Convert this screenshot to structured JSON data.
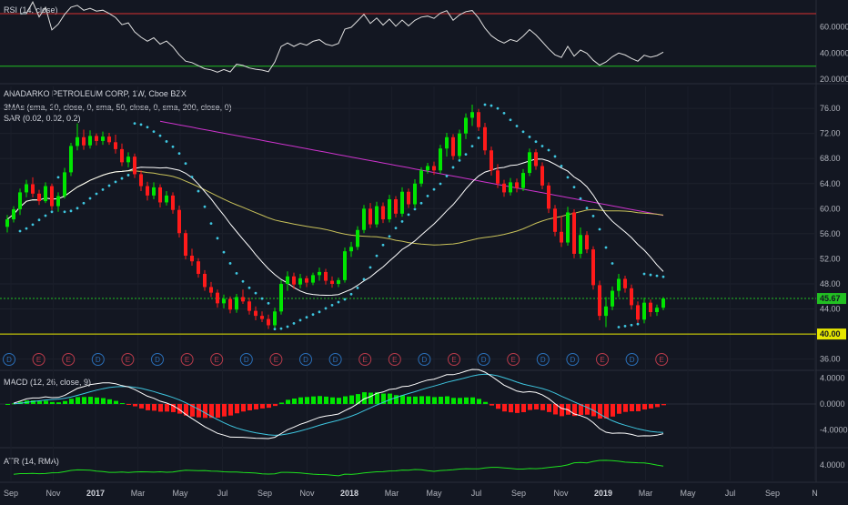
{
  "chart_data": {
    "type": "candlestick",
    "symbol": "ANADARKO PETROLEUM CORP, 1W, Cboe BZX",
    "indicators": {
      "rsi_label": "RSI (14, close)",
      "ma_label": "3MAs (sma, 20, close, 0, sma, 50, close, 0, sma, 200, close, 0)",
      "sar_label": "SAR (0.02, 0.02, 0.2)",
      "macd_label": "MACD (12, 26, close, 9)",
      "atr_label": "ATR (14, RMA)"
    },
    "price_axis": {
      "range": [
        34.5,
        79.5
      ],
      "ticks": [
        "76.00",
        "72.00",
        "68.00",
        "64.00",
        "60.00",
        "56.00",
        "52.00",
        "48.00",
        "44.00",
        "40.00",
        "36.00"
      ]
    },
    "rsi_axis": {
      "range": [
        18,
        79
      ],
      "ticks": [
        "60.0000",
        "40.0000",
        "20.0000"
      ],
      "levels": [
        70,
        30
      ]
    },
    "macd_axis": {
      "range": [
        -6.5,
        4.8
      ],
      "ticks": [
        "4.0000",
        "0.0000",
        "-4.0000"
      ]
    },
    "atr_axis": {
      "range": [
        2,
        6
      ],
      "ticks": [
        "4.0000"
      ]
    },
    "last_price": {
      "value": 45.67,
      "label": "45.67"
    },
    "support_line": {
      "value": 40.0,
      "label": "40.00"
    },
    "x_axis": {
      "labels": [
        {
          "text": "Sep",
          "bold": false
        },
        {
          "text": "Nov",
          "bold": false
        },
        {
          "text": "2017",
          "bold": true
        },
        {
          "text": "Mar",
          "bold": false
        },
        {
          "text": "May",
          "bold": false
        },
        {
          "text": "Jul",
          "bold": false
        },
        {
          "text": "Sep",
          "bold": false
        },
        {
          "text": "Nov",
          "bold": false
        },
        {
          "text": "2018",
          "bold": true
        },
        {
          "text": "Mar",
          "bold": false
        },
        {
          "text": "May",
          "bold": false
        },
        {
          "text": "Jul",
          "bold": false
        },
        {
          "text": "Sep",
          "bold": false
        },
        {
          "text": "Nov",
          "bold": false
        },
        {
          "text": "2019",
          "bold": true
        },
        {
          "text": "Mar",
          "bold": false
        },
        {
          "text": "May",
          "bold": false
        },
        {
          "text": "Jul",
          "bold": false
        },
        {
          "text": "Sep",
          "bold": false
        },
        {
          "text": "N",
          "bold": false
        }
      ]
    },
    "events": [
      "D",
      "E",
      "E",
      "D",
      "E",
      "D",
      "E",
      "E",
      "D",
      "E",
      "D",
      "D",
      "E",
      "E",
      "D",
      "E",
      "D",
      "E",
      "D",
      "D",
      "E",
      "D",
      "E"
    ],
    "colors": {
      "background": "#131722",
      "up": "#00e600",
      "down": "#ff1a1a",
      "ma20": "#ffffff",
      "ma50": "#c9c25a",
      "ma200": "#cc33cc",
      "sar": "#3ec6e0",
      "rsi": "#e0e0e0",
      "rsi_upper": "#d83030",
      "rsi_lower": "#22c022",
      "macd": "#ffffff",
      "signal": "#3ec6e0",
      "atr": "#1ee01e",
      "last_price_line": "#22c022",
      "support": "#e6e600",
      "event_dividend": "#2a6fb8",
      "event_earnings": "#b83a4a"
    },
    "candles": [
      {
        "o": 57.1,
        "h": 59.0,
        "l": 56.2,
        "c": 58.3
      },
      {
        "o": 58.3,
        "h": 60.4,
        "l": 57.8,
        "c": 59.9
      },
      {
        "o": 59.9,
        "h": 63.2,
        "l": 59.0,
        "c": 62.6
      },
      {
        "o": 62.6,
        "h": 64.6,
        "l": 61.8,
        "c": 63.9
      },
      {
        "o": 63.9,
        "h": 65.0,
        "l": 61.8,
        "c": 62.4
      },
      {
        "o": 62.4,
        "h": 63.0,
        "l": 60.6,
        "c": 61.2
      },
      {
        "o": 61.2,
        "h": 64.2,
        "l": 60.9,
        "c": 63.6
      },
      {
        "o": 63.6,
        "h": 64.0,
        "l": 59.8,
        "c": 60.4
      },
      {
        "o": 60.4,
        "h": 62.6,
        "l": 59.5,
        "c": 62.0
      },
      {
        "o": 62.0,
        "h": 66.5,
        "l": 61.6,
        "c": 65.8
      },
      {
        "o": 65.8,
        "h": 70.5,
        "l": 65.2,
        "c": 70.0
      },
      {
        "o": 70.0,
        "h": 73.6,
        "l": 69.3,
        "c": 71.4
      },
      {
        "o": 71.4,
        "h": 72.6,
        "l": 69.4,
        "c": 70.1
      },
      {
        "o": 70.1,
        "h": 72.5,
        "l": 69.6,
        "c": 71.6
      },
      {
        "o": 71.6,
        "h": 72.0,
        "l": 70.1,
        "c": 70.8
      },
      {
        "o": 70.8,
        "h": 72.3,
        "l": 70.2,
        "c": 71.5
      },
      {
        "o": 71.5,
        "h": 72.1,
        "l": 70.2,
        "c": 70.6
      },
      {
        "o": 70.6,
        "h": 71.8,
        "l": 68.8,
        "c": 69.5
      },
      {
        "o": 69.5,
        "h": 70.4,
        "l": 66.8,
        "c": 67.4
      },
      {
        "o": 67.4,
        "h": 69.0,
        "l": 66.6,
        "c": 68.3
      },
      {
        "o": 68.3,
        "h": 68.8,
        "l": 64.9,
        "c": 65.5
      },
      {
        "o": 65.5,
        "h": 66.1,
        "l": 62.8,
        "c": 63.6
      },
      {
        "o": 63.6,
        "h": 64.3,
        "l": 61.3,
        "c": 62.1
      },
      {
        "o": 62.1,
        "h": 64.2,
        "l": 61.5,
        "c": 63.4
      },
      {
        "o": 63.4,
        "h": 63.9,
        "l": 60.2,
        "c": 61.0
      },
      {
        "o": 61.0,
        "h": 62.8,
        "l": 60.5,
        "c": 62.1
      },
      {
        "o": 62.1,
        "h": 62.6,
        "l": 59.2,
        "c": 59.8
      },
      {
        "o": 59.8,
        "h": 60.5,
        "l": 55.4,
        "c": 56.1
      },
      {
        "o": 56.1,
        "h": 56.6,
        "l": 51.9,
        "c": 52.5
      },
      {
        "o": 52.5,
        "h": 53.6,
        "l": 50.9,
        "c": 51.6
      },
      {
        "o": 51.6,
        "h": 52.1,
        "l": 49.0,
        "c": 49.6
      },
      {
        "o": 49.6,
        "h": 50.2,
        "l": 46.9,
        "c": 47.5
      },
      {
        "o": 47.5,
        "h": 48.3,
        "l": 45.9,
        "c": 46.6
      },
      {
        "o": 46.6,
        "h": 47.1,
        "l": 44.2,
        "c": 44.9
      },
      {
        "o": 44.9,
        "h": 46.3,
        "l": 44.1,
        "c": 45.6
      },
      {
        "o": 45.6,
        "h": 46.0,
        "l": 43.3,
        "c": 43.9
      },
      {
        "o": 43.9,
        "h": 46.4,
        "l": 43.4,
        "c": 45.9
      },
      {
        "o": 45.9,
        "h": 47.1,
        "l": 44.8,
        "c": 45.2
      },
      {
        "o": 45.2,
        "h": 45.8,
        "l": 43.1,
        "c": 43.7
      },
      {
        "o": 43.7,
        "h": 44.4,
        "l": 42.2,
        "c": 42.9
      },
      {
        "o": 42.9,
        "h": 43.6,
        "l": 41.9,
        "c": 42.4
      },
      {
        "o": 42.4,
        "h": 43.1,
        "l": 40.8,
        "c": 41.4
      },
      {
        "o": 41.4,
        "h": 44.2,
        "l": 40.9,
        "c": 43.6
      },
      {
        "o": 43.6,
        "h": 48.6,
        "l": 43.1,
        "c": 48.0
      },
      {
        "o": 48.0,
        "h": 50.0,
        "l": 46.9,
        "c": 49.2
      },
      {
        "o": 49.2,
        "h": 49.8,
        "l": 47.2,
        "c": 47.9
      },
      {
        "o": 47.9,
        "h": 49.6,
        "l": 47.3,
        "c": 48.9
      },
      {
        "o": 48.9,
        "h": 49.3,
        "l": 47.5,
        "c": 48.2
      },
      {
        "o": 48.2,
        "h": 49.8,
        "l": 47.8,
        "c": 49.4
      },
      {
        "o": 49.4,
        "h": 50.6,
        "l": 48.5,
        "c": 49.9
      },
      {
        "o": 49.9,
        "h": 50.4,
        "l": 47.9,
        "c": 48.5
      },
      {
        "o": 48.5,
        "h": 49.2,
        "l": 47.4,
        "c": 48.0
      },
      {
        "o": 48.0,
        "h": 49.0,
        "l": 47.5,
        "c": 48.6
      },
      {
        "o": 48.6,
        "h": 53.8,
        "l": 48.2,
        "c": 53.2
      },
      {
        "o": 53.2,
        "h": 54.7,
        "l": 52.3,
        "c": 53.9
      },
      {
        "o": 53.9,
        "h": 57.2,
        "l": 53.4,
        "c": 56.6
      },
      {
        "o": 56.6,
        "h": 60.6,
        "l": 56.1,
        "c": 60.0
      },
      {
        "o": 60.0,
        "h": 60.9,
        "l": 56.9,
        "c": 57.5
      },
      {
        "o": 57.5,
        "h": 61.1,
        "l": 57.0,
        "c": 60.4
      },
      {
        "o": 60.4,
        "h": 61.0,
        "l": 57.7,
        "c": 58.3
      },
      {
        "o": 58.3,
        "h": 62.2,
        "l": 57.8,
        "c": 61.5
      },
      {
        "o": 61.5,
        "h": 62.0,
        "l": 58.6,
        "c": 59.2
      },
      {
        "o": 59.2,
        "h": 63.4,
        "l": 58.7,
        "c": 62.7
      },
      {
        "o": 62.7,
        "h": 63.2,
        "l": 60.1,
        "c": 60.7
      },
      {
        "o": 60.7,
        "h": 64.7,
        "l": 60.2,
        "c": 64.0
      },
      {
        "o": 64.0,
        "h": 66.6,
        "l": 63.5,
        "c": 66.1
      },
      {
        "o": 66.1,
        "h": 67.3,
        "l": 65.6,
        "c": 66.8
      },
      {
        "o": 66.8,
        "h": 67.5,
        "l": 65.4,
        "c": 66.1
      },
      {
        "o": 66.1,
        "h": 70.2,
        "l": 65.6,
        "c": 69.6
      },
      {
        "o": 69.6,
        "h": 72.1,
        "l": 68.3,
        "c": 71.4
      },
      {
        "o": 71.4,
        "h": 71.9,
        "l": 67.8,
        "c": 68.4
      },
      {
        "o": 68.4,
        "h": 72.6,
        "l": 67.9,
        "c": 72.0
      },
      {
        "o": 72.0,
        "h": 75.2,
        "l": 71.1,
        "c": 74.5
      },
      {
        "o": 74.5,
        "h": 76.6,
        "l": 73.2,
        "c": 75.4
      },
      {
        "o": 75.4,
        "h": 75.9,
        "l": 72.4,
        "c": 73.0
      },
      {
        "o": 73.0,
        "h": 73.7,
        "l": 68.6,
        "c": 69.3
      },
      {
        "o": 69.3,
        "h": 69.9,
        "l": 65.3,
        "c": 66.1
      },
      {
        "o": 66.1,
        "h": 67.1,
        "l": 63.3,
        "c": 64.0
      },
      {
        "o": 64.0,
        "h": 64.6,
        "l": 61.9,
        "c": 62.6
      },
      {
        "o": 62.6,
        "h": 64.9,
        "l": 62.1,
        "c": 64.2
      },
      {
        "o": 64.2,
        "h": 64.8,
        "l": 62.6,
        "c": 63.3
      },
      {
        "o": 63.3,
        "h": 66.3,
        "l": 62.8,
        "c": 65.7
      },
      {
        "o": 65.7,
        "h": 69.6,
        "l": 65.2,
        "c": 69.0
      },
      {
        "o": 69.0,
        "h": 69.5,
        "l": 66.2,
        "c": 66.8
      },
      {
        "o": 66.8,
        "h": 67.4,
        "l": 63.1,
        "c": 63.7
      },
      {
        "o": 63.7,
        "h": 64.2,
        "l": 59.3,
        "c": 60.0
      },
      {
        "o": 60.0,
        "h": 60.6,
        "l": 55.6,
        "c": 56.3
      },
      {
        "o": 56.3,
        "h": 58.8,
        "l": 53.9,
        "c": 54.6
      },
      {
        "o": 54.6,
        "h": 60.3,
        "l": 54.1,
        "c": 59.4
      },
      {
        "o": 59.4,
        "h": 59.9,
        "l": 52.1,
        "c": 52.8
      },
      {
        "o": 52.8,
        "h": 57.0,
        "l": 52.1,
        "c": 55.8
      },
      {
        "o": 55.8,
        "h": 56.4,
        "l": 52.9,
        "c": 53.5
      },
      {
        "o": 53.5,
        "h": 54.0,
        "l": 47.1,
        "c": 47.8
      },
      {
        "o": 47.8,
        "h": 48.5,
        "l": 42.2,
        "c": 42.9
      },
      {
        "o": 42.9,
        "h": 45.9,
        "l": 41.1,
        "c": 44.4
      },
      {
        "o": 44.4,
        "h": 47.6,
        "l": 43.8,
        "c": 46.9
      },
      {
        "o": 46.9,
        "h": 49.6,
        "l": 45.9,
        "c": 48.8
      },
      {
        "o": 48.8,
        "h": 49.3,
        "l": 46.6,
        "c": 47.3
      },
      {
        "o": 47.3,
        "h": 47.9,
        "l": 43.9,
        "c": 44.6
      },
      {
        "o": 44.6,
        "h": 45.2,
        "l": 41.6,
        "c": 42.3
      },
      {
        "o": 42.3,
        "h": 45.8,
        "l": 41.7,
        "c": 45.0
      },
      {
        "o": 45.0,
        "h": 45.5,
        "l": 42.8,
        "c": 43.5
      },
      {
        "o": 43.5,
        "h": 44.7,
        "l": 42.9,
        "c": 44.2
      },
      {
        "o": 44.2,
        "h": 45.9,
        "l": 43.8,
        "c": 45.67
      }
    ]
  }
}
